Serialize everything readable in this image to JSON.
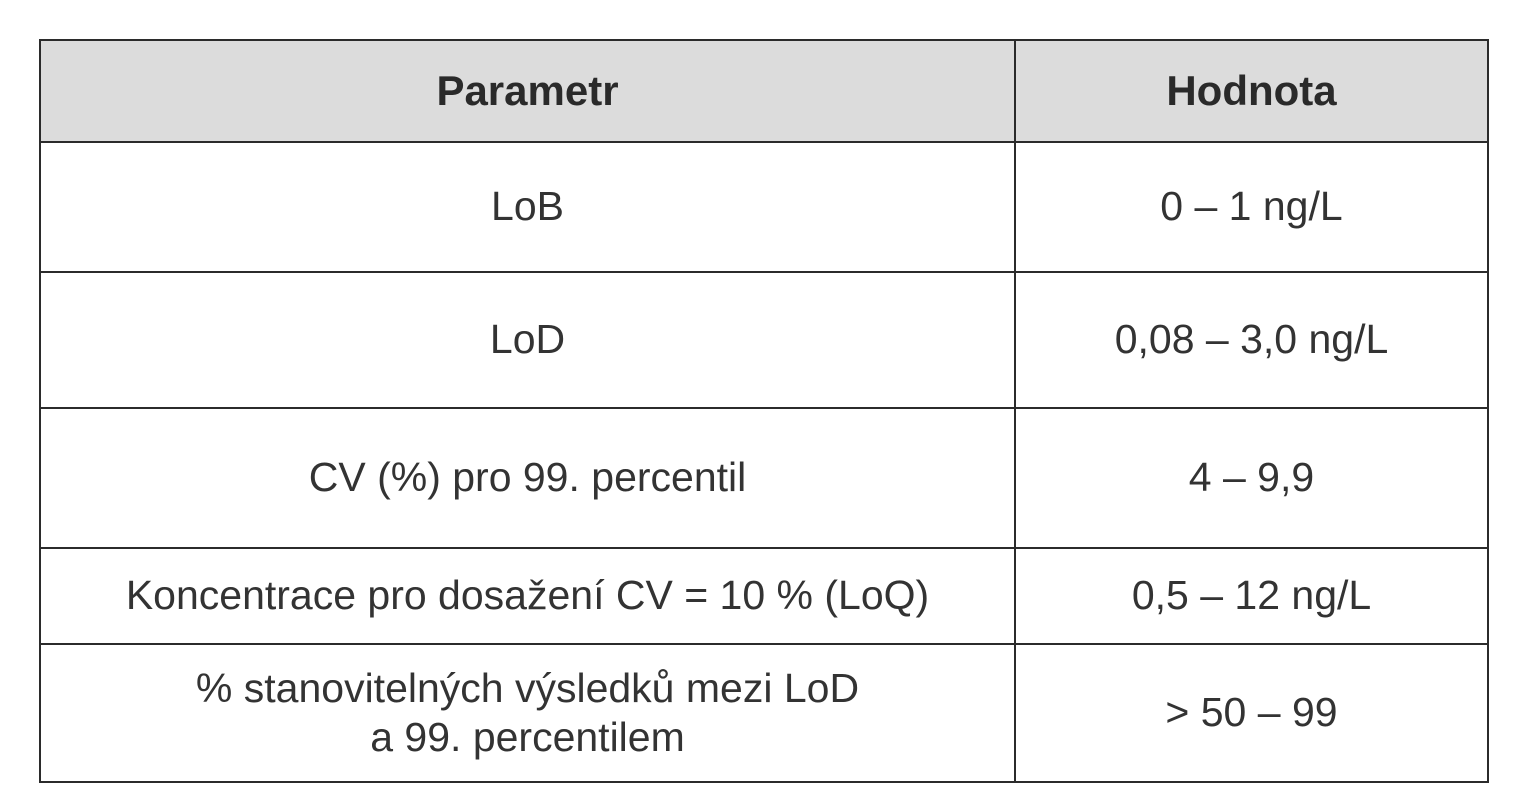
{
  "table": {
    "headers": [
      "Parametr",
      "Hodnota"
    ],
    "rows": [
      {
        "parametr": [
          "LoB"
        ],
        "hodnota": "0 – 1 ng/L"
      },
      {
        "parametr": [
          "LoD"
        ],
        "hodnota": "0,08 – 3,0 ng/L"
      },
      {
        "parametr": [
          "CV (%) pro 99. percentil"
        ],
        "hodnota": "4 – 9,9"
      },
      {
        "parametr": [
          "Koncentrace pro dosažení CV = 10 % (LoQ)"
        ],
        "hodnota": "0,5 – 12 ng/L"
      },
      {
        "parametr": [
          "% stanovitelných výsledků mezi LoD",
          "a 99. percentilem"
        ],
        "hodnota": "> 50 – 99"
      }
    ]
  },
  "colors": {
    "header_bg": "#dcdcdc",
    "border": "#2b2b2b",
    "text": "#333333"
  }
}
